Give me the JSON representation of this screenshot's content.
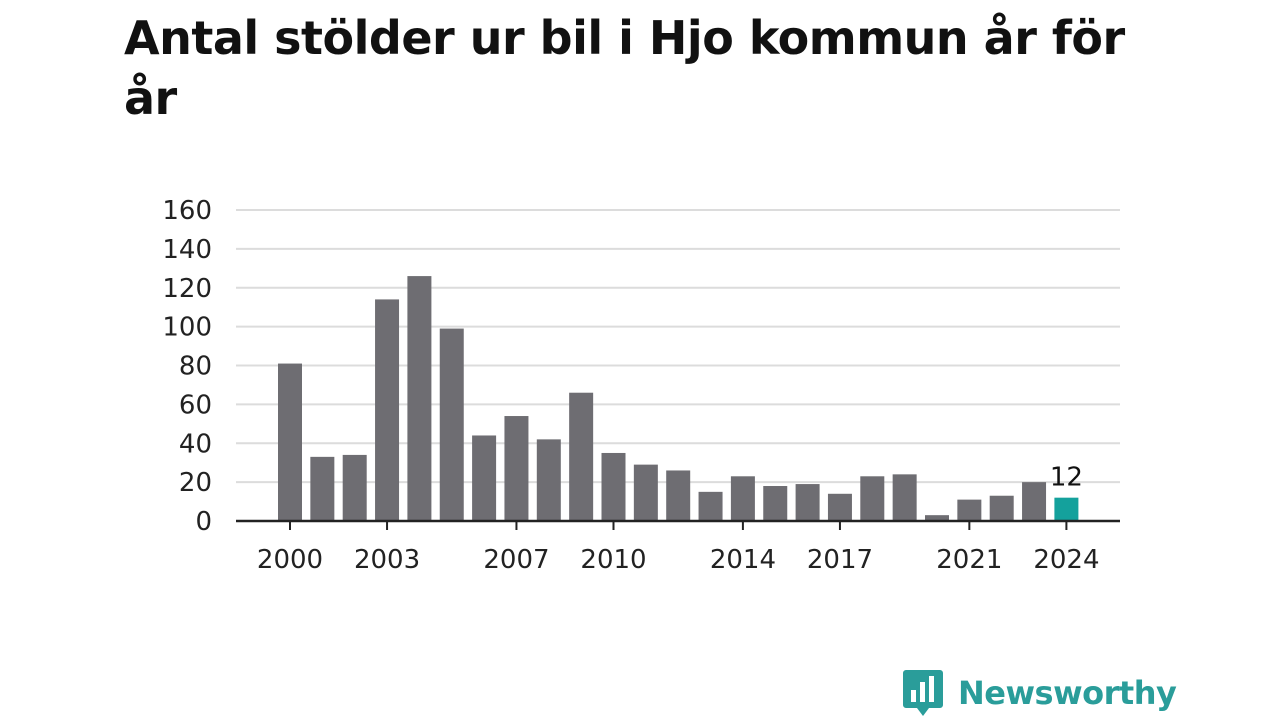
{
  "title": "Antal stölder ur bil i Hjo kommun år för år",
  "brand": {
    "name": "Newsworthy",
    "logo_icon": "bar-chart-speech-bubble-icon"
  },
  "colors": {
    "bar": "#6e6d72",
    "highlight": "#14a19c",
    "grid": "#dcdcdc",
    "axis": "#222222",
    "brand": "#2a9d9a"
  },
  "chart_data": {
    "type": "bar",
    "title": "Antal stölder ur bil i Hjo kommun år för år",
    "xlabel": "",
    "ylabel": "",
    "categories": [
      "2000",
      "2001",
      "2002",
      "2003",
      "2004",
      "2005",
      "2006",
      "2007",
      "2008",
      "2009",
      "2010",
      "2011",
      "2012",
      "2013",
      "2014",
      "2015",
      "2016",
      "2017",
      "2018",
      "2019",
      "2020",
      "2021",
      "2022",
      "2023",
      "2024"
    ],
    "values": [
      81,
      33,
      34,
      114,
      126,
      99,
      44,
      54,
      42,
      66,
      35,
      29,
      26,
      15,
      23,
      18,
      19,
      14,
      23,
      24,
      3,
      11,
      13,
      20,
      12
    ],
    "ylim": [
      0,
      160
    ],
    "yticks": [
      0,
      20,
      40,
      60,
      80,
      100,
      120,
      140,
      160
    ],
    "xtick_labels": [
      "2000",
      "2003",
      "2007",
      "2010",
      "2014",
      "2017",
      "2021",
      "2024"
    ],
    "highlight": {
      "category": "2024",
      "label": "12"
    },
    "grid": true
  }
}
